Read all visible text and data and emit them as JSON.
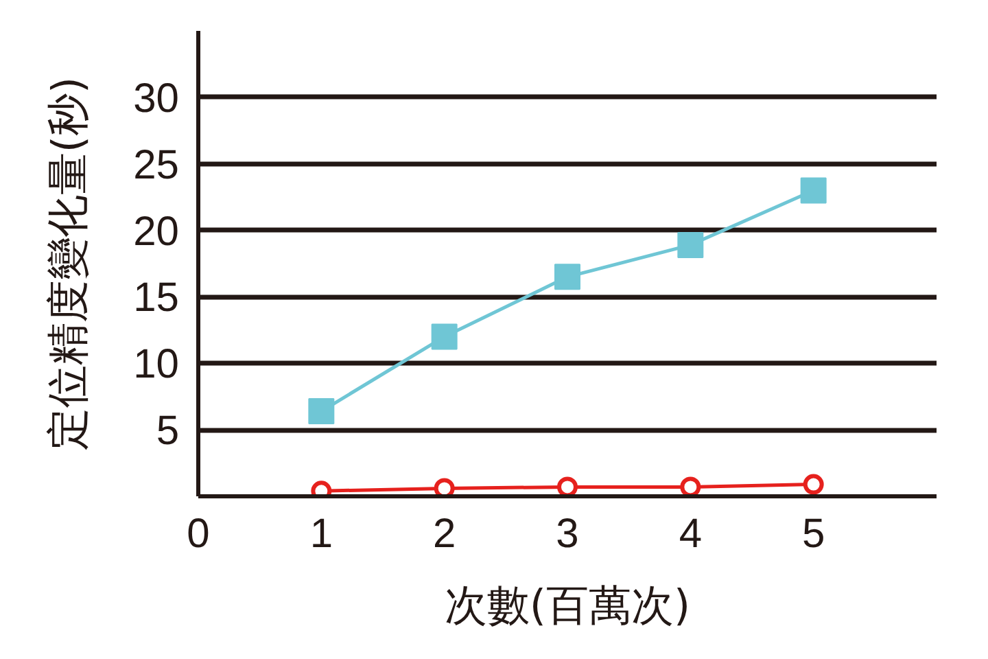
{
  "chart_data": {
    "type": "line",
    "xlabel": "次數(百萬次)",
    "ylabel": "定位精度變化量(秒)",
    "x": [
      1,
      2,
      3,
      4,
      5
    ],
    "series": [
      {
        "color": "#6fc6d5",
        "marker": "square",
        "values": [
          6.4,
          12.0,
          16.5,
          18.9,
          23.0
        ]
      },
      {
        "color": "#e6211d",
        "marker": "circle",
        "values": [
          0.4,
          0.6,
          0.7,
          0.7,
          0.9
        ]
      }
    ],
    "xlim": [
      0,
      6
    ],
    "ylim": [
      0,
      35
    ],
    "xticks": [
      0,
      1,
      2,
      3,
      4,
      5
    ],
    "yticks": [
      5,
      10,
      15,
      20,
      25,
      30
    ],
    "grid": "y"
  }
}
